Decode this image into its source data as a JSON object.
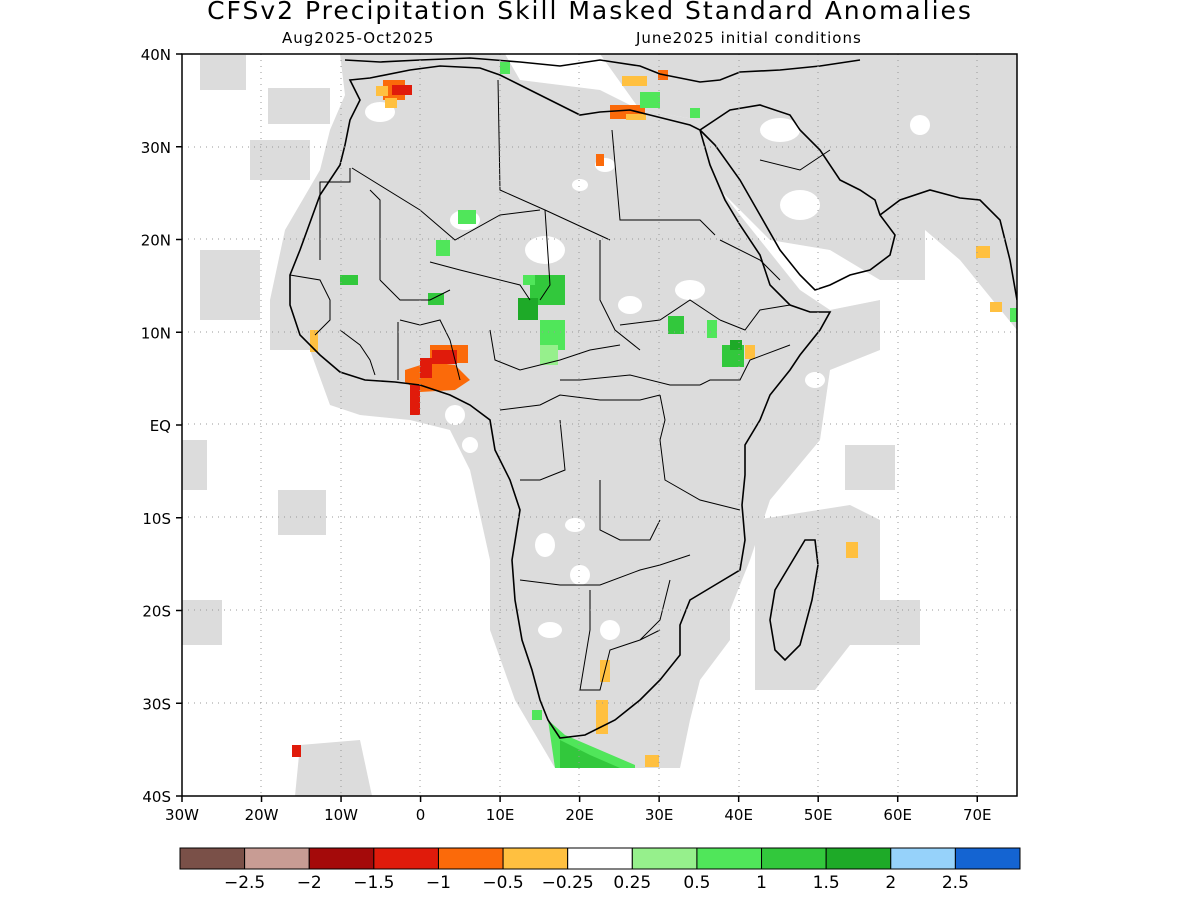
{
  "header": {
    "title": "CFSv2 Precipitation Skill Masked Standard Anomalies",
    "period": "Aug2025-Oct2025",
    "init": "June2025 initial conditions"
  },
  "axes": {
    "lat_labels": [
      "40N",
      "30N",
      "20N",
      "10N",
      "EQ",
      "10S",
      "20S",
      "30S",
      "40S"
    ],
    "lon_labels": [
      "30W",
      "20W",
      "10W",
      "0",
      "10E",
      "20E",
      "30E",
      "40E",
      "50E",
      "60E",
      "70E"
    ]
  },
  "colorbar": {
    "colors": [
      "#7a5048",
      "#c89c94",
      "#a40a0a",
      "#e01b0b",
      "#fb6a0a",
      "#ffc040",
      "#ffffff",
      "#96f08c",
      "#50e65a",
      "#32c83c",
      "#1eaa28",
      "#96d2fa",
      "#1464d2"
    ],
    "labels": [
      "-2.5",
      "-2",
      "-1.5",
      "-1",
      "-0.5",
      "-0.25",
      "0.25",
      "0.5",
      "1",
      "1.5",
      "2",
      "2.5"
    ]
  },
  "colors": {
    "masked_land": "#dcdcdc",
    "grid": "#999999"
  }
}
